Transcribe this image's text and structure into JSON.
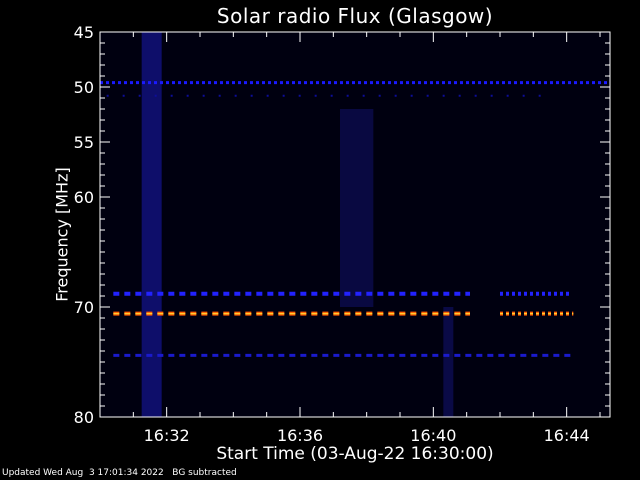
{
  "chart_data": {
    "type": "heatmap",
    "title": "Solar radio Flux (Glasgow)",
    "xlabel": "Start Time (03-Aug-22 16:30:00)",
    "ylabel": "Frequency [MHz]",
    "x_range_minutes": [
      0,
      15.3
    ],
    "y_range_mhz": [
      45,
      80
    ],
    "y_inverted": true,
    "x_ticks": [
      {
        "value": 2,
        "label": "16:32"
      },
      {
        "value": 6,
        "label": "16:36"
      },
      {
        "value": 10,
        "label": "16:40"
      },
      {
        "value": 14,
        "label": "16:44"
      }
    ],
    "y_ticks": [
      {
        "value": 45,
        "label": "45"
      },
      {
        "value": 50,
        "label": "50"
      },
      {
        "value": 55,
        "label": "55"
      },
      {
        "value": 60,
        "label": "60"
      },
      {
        "value": 70,
        "label": "70"
      },
      {
        "value": 80,
        "label": "80"
      }
    ],
    "background_color": "#000010",
    "emission_bands": [
      {
        "freq": 49.6,
        "start": 0,
        "end": 15.3,
        "color": "#1a1aff",
        "intensity": "low",
        "style": "dotted"
      },
      {
        "freq": 50.8,
        "start": 0.2,
        "end": 13.5,
        "color": "#0d0d99",
        "intensity": "faint",
        "style": "sparse"
      },
      {
        "freq": 68.8,
        "start": 0.4,
        "end": 11.1,
        "color": "#2222ff",
        "intensity": "medium",
        "style": "dashed"
      },
      {
        "freq": 68.8,
        "start": 12.0,
        "end": 14.1,
        "color": "#2222ff",
        "intensity": "medium",
        "style": "dotted"
      },
      {
        "freq": 70.6,
        "start": 0.4,
        "end": 11.1,
        "color": "#ff5500",
        "intensity": "high",
        "style": "dashed"
      },
      {
        "freq": 70.6,
        "start": 12.0,
        "end": 14.2,
        "color": "#ff5500",
        "intensity": "high",
        "style": "dotted"
      },
      {
        "freq": 74.4,
        "start": 0.4,
        "end": 14.2,
        "color": "#1a1acc",
        "intensity": "low",
        "style": "dashed"
      }
    ],
    "vertical_features": [
      {
        "start": 1.25,
        "end": 1.85,
        "freq_from": 45,
        "freq_to": 80,
        "color": "#10107a"
      },
      {
        "start": 7.2,
        "end": 8.2,
        "freq_from": 52,
        "freq_to": 70,
        "color": "#0a0a4a"
      },
      {
        "start": 10.3,
        "end": 10.6,
        "freq_from": 70,
        "freq_to": 80,
        "color": "#0c0c50"
      }
    ],
    "colors": {
      "axis": "#ffffff",
      "high_emission": "#ff5500",
      "medium_emission": "#2222ff"
    }
  },
  "footer": "Updated Wed Aug  3 17:01:34 2022   BG subtracted"
}
